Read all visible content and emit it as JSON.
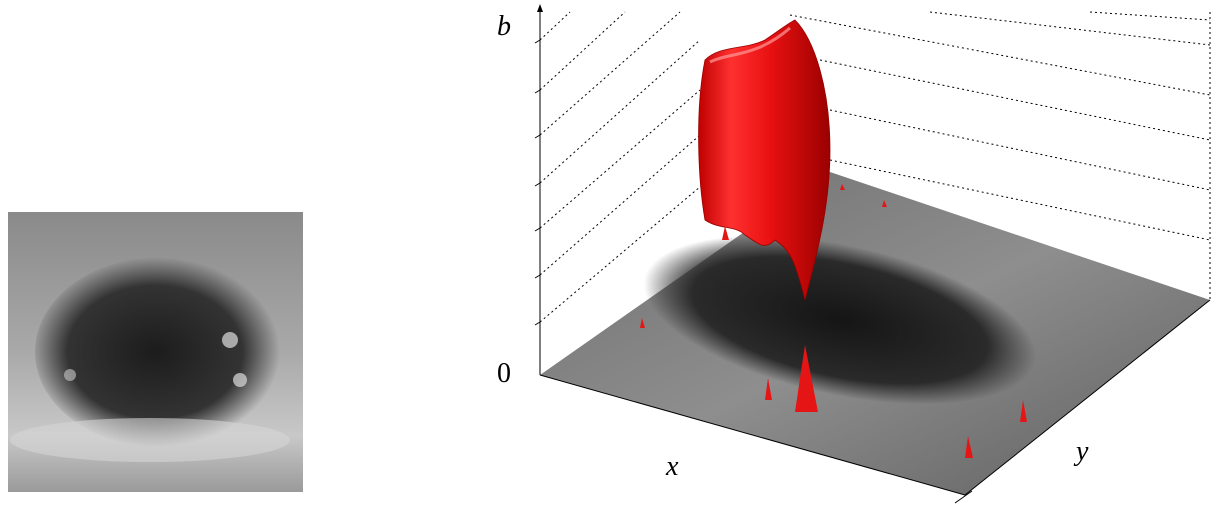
{
  "plot": {
    "z_label": "b",
    "z_origin": "0",
    "x_label": "x",
    "y_label": "y"
  }
}
